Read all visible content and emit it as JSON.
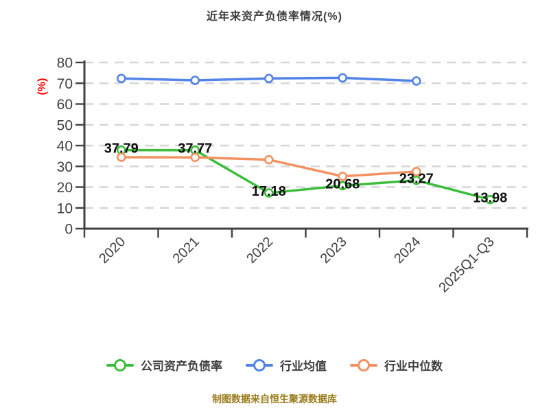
{
  "chart_data": {
    "type": "line",
    "title": "近年来资产负债率情况(%)",
    "ylabel": "(%)",
    "xlabel": "",
    "categories": [
      "2020",
      "2021",
      "2022",
      "2023",
      "2024",
      "2025Q1-Q3"
    ],
    "ylim": [
      0,
      80
    ],
    "y_ticks": [
      80,
      70,
      60,
      50,
      40,
      30,
      20,
      10,
      0
    ],
    "grid": "horizontal-dashed",
    "legend_position": "bottom",
    "series": [
      {
        "name": "公司资产负债率",
        "color": "#3cbd3c",
        "values": [
          37.79,
          37.77,
          17.18,
          20.68,
          23.27,
          13.98
        ],
        "point_labels": [
          "37.79",
          "37.77",
          "17.18",
          "20.68",
          "23.27",
          "13.98"
        ]
      },
      {
        "name": "行业均值",
        "color": "#5283e8",
        "values": [
          72.3,
          71.4,
          72.3,
          72.6,
          71.1,
          null
        ],
        "point_labels": []
      },
      {
        "name": "行业中位数",
        "color": "#f2915f",
        "values": [
          34.4,
          34.3,
          33.2,
          25.2,
          27.5,
          null
        ],
        "point_labels": []
      }
    ]
  },
  "caption": "制图数据来自恒生聚源数据库",
  "colors": {
    "background": "#ffffff",
    "title_text": "#3c3c3c",
    "axis_line": "#404040",
    "axis_text": "#404040",
    "gridline": "#d6d6d6",
    "ylabel_text": "#ff0000",
    "point_label_text": "#0d0d0d",
    "caption_text": "#9a7b1a"
  }
}
